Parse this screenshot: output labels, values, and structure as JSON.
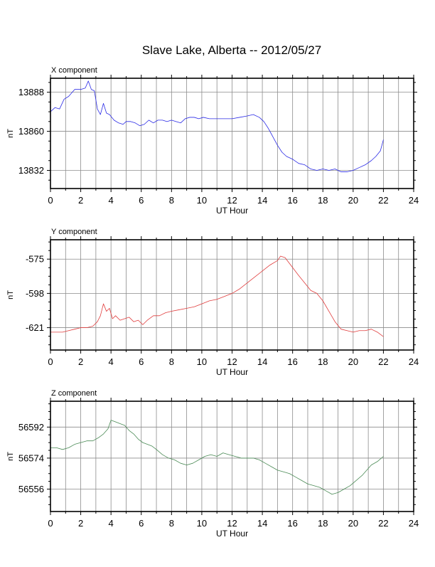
{
  "page": {
    "title": "Slave Lake, Alberta -- 2012/05/27"
  },
  "chart_data": [
    {
      "type": "line",
      "title": "X component",
      "xlabel": "UT Hour",
      "ylabel": "nT",
      "xlim": [
        0,
        24
      ],
      "ylim": [
        13819,
        13898
      ],
      "x_ticks": [
        0,
        2,
        4,
        6,
        8,
        10,
        12,
        14,
        16,
        18,
        20,
        22,
        24
      ],
      "y_ticks": [
        13832,
        13860,
        13888
      ],
      "grid": true,
      "series": [
        {
          "color": "#2a2ae6",
          "x": [
            0,
            0.3,
            0.6,
            0.9,
            1.2,
            1.6,
            2.0,
            2.3,
            2.5,
            2.7,
            2.9,
            3.1,
            3.3,
            3.5,
            3.7,
            3.9,
            4.2,
            4.5,
            4.8,
            5.0,
            5.3,
            5.6,
            5.9,
            6.2,
            6.5,
            6.8,
            7.1,
            7.4,
            7.7,
            8.0,
            8.3,
            8.6,
            8.9,
            9.2,
            9.5,
            9.8,
            10.1,
            10.5,
            11.0,
            11.5,
            12.0,
            12.5,
            13.0,
            13.4,
            13.8,
            14.1,
            14.4,
            14.7,
            15.0,
            15.3,
            15.6,
            16.0,
            16.4,
            16.8,
            17.2,
            17.6,
            18.0,
            18.4,
            18.8,
            19.2,
            19.6,
            20.0,
            20.4,
            20.8,
            21.2,
            21.5,
            21.8,
            22.0
          ],
          "values": [
            13874,
            13877,
            13876,
            13883,
            13885,
            13890,
            13890,
            13891,
            13896,
            13890,
            13889,
            13876,
            13872,
            13880,
            13873,
            13872,
            13868,
            13866,
            13865,
            13867,
            13867,
            13866,
            13864,
            13865,
            13868,
            13866,
            13868,
            13868,
            13867,
            13868,
            13867,
            13866,
            13869,
            13870,
            13870,
            13869,
            13870,
            13869,
            13869,
            13869,
            13869,
            13870,
            13871,
            13872,
            13870,
            13867,
            13862,
            13856,
            13850,
            13845,
            13842,
            13840,
            13837,
            13836,
            13833,
            13832,
            13833,
            13832,
            13833,
            13831,
            13831,
            13832,
            13834,
            13836,
            13839,
            13842,
            13846,
            13854
          ]
        }
      ]
    },
    {
      "type": "line",
      "title": "Y component",
      "xlabel": "UT Hour",
      "ylabel": "nT",
      "xlim": [
        0,
        24
      ],
      "ylim": [
        -636,
        -562
      ],
      "x_ticks": [
        0,
        2,
        4,
        6,
        8,
        10,
        12,
        14,
        16,
        18,
        20,
        22,
        24
      ],
      "y_ticks": [
        -575,
        -598,
        -621
      ],
      "grid": true,
      "series": [
        {
          "color": "#e03c3c",
          "x": [
            0,
            0.4,
            0.8,
            1.2,
            1.6,
            2.0,
            2.4,
            2.8,
            3.1,
            3.3,
            3.5,
            3.7,
            3.9,
            4.1,
            4.3,
            4.6,
            4.9,
            5.2,
            5.5,
            5.8,
            6.1,
            6.4,
            6.8,
            7.2,
            7.6,
            8.0,
            8.5,
            9.0,
            9.5,
            10.0,
            10.5,
            11.0,
            11.5,
            12.0,
            12.5,
            13.0,
            13.5,
            14.0,
            14.5,
            15.0,
            15.2,
            15.5,
            15.8,
            16.1,
            16.4,
            16.8,
            17.2,
            17.6,
            18.0,
            18.4,
            18.8,
            19.2,
            19.6,
            20.0,
            20.4,
            20.8,
            21.2,
            21.6,
            22.0
          ],
          "values": [
            -624,
            -624,
            -624,
            -623,
            -622,
            -621,
            -621,
            -620,
            -617,
            -613,
            -605,
            -610,
            -608,
            -615,
            -613,
            -616,
            -615,
            -614,
            -617,
            -616,
            -619,
            -616,
            -613,
            -613,
            -611,
            -610,
            -609,
            -608,
            -607,
            -605,
            -603,
            -602,
            -600,
            -598,
            -595,
            -591,
            -587,
            -583,
            -579,
            -576,
            -573,
            -574,
            -578,
            -582,
            -586,
            -591,
            -596,
            -598,
            -603,
            -610,
            -617,
            -622,
            -623,
            -624,
            -623,
            -623,
            -622,
            -624,
            -627
          ]
        }
      ]
    },
    {
      "type": "line",
      "title": "Z component",
      "xlabel": "UT Hour",
      "ylabel": "nT",
      "xlim": [
        0,
        24
      ],
      "ylim": [
        56543,
        56607
      ],
      "x_ticks": [
        0,
        2,
        4,
        6,
        8,
        10,
        12,
        14,
        16,
        18,
        20,
        22,
        24
      ],
      "y_ticks": [
        56592,
        56574,
        56556
      ],
      "grid": true,
      "series": [
        {
          "color": "#4a8a55",
          "x": [
            0,
            0.4,
            0.8,
            1.2,
            1.6,
            2.0,
            2.4,
            2.8,
            3.2,
            3.5,
            3.8,
            4.0,
            4.3,
            4.6,
            4.9,
            5.2,
            5.5,
            5.8,
            6.1,
            6.4,
            6.7,
            7.0,
            7.4,
            7.8,
            8.2,
            8.6,
            9.0,
            9.4,
            9.8,
            10.2,
            10.6,
            11.0,
            11.4,
            11.8,
            12.2,
            12.6,
            13.0,
            13.4,
            13.8,
            14.2,
            14.6,
            15.0,
            15.4,
            15.8,
            16.2,
            16.6,
            17.0,
            17.4,
            17.8,
            18.2,
            18.6,
            19.0,
            19.4,
            19.8,
            20.2,
            20.6,
            20.9,
            21.2,
            21.6,
            22.0
          ],
          "values": [
            56580,
            56580,
            56579,
            56580,
            56582,
            56583,
            56584,
            56584,
            56586,
            56588,
            56591,
            56596,
            56595,
            56594,
            56593,
            56590,
            56588,
            56585,
            56583,
            56582,
            56581,
            56579,
            56576,
            56574,
            56573,
            56571,
            56570,
            56571,
            56573,
            56575,
            56576,
            56575,
            56577,
            56576,
            56575,
            56574,
            56574,
            56574,
            56573,
            56571,
            56569,
            56567,
            56566,
            56565,
            56563,
            56561,
            56559,
            56558,
            56557,
            56555,
            56553,
            56554,
            56556,
            56558,
            56561,
            56564,
            56567,
            56570,
            56572,
            56575
          ]
        }
      ]
    }
  ]
}
